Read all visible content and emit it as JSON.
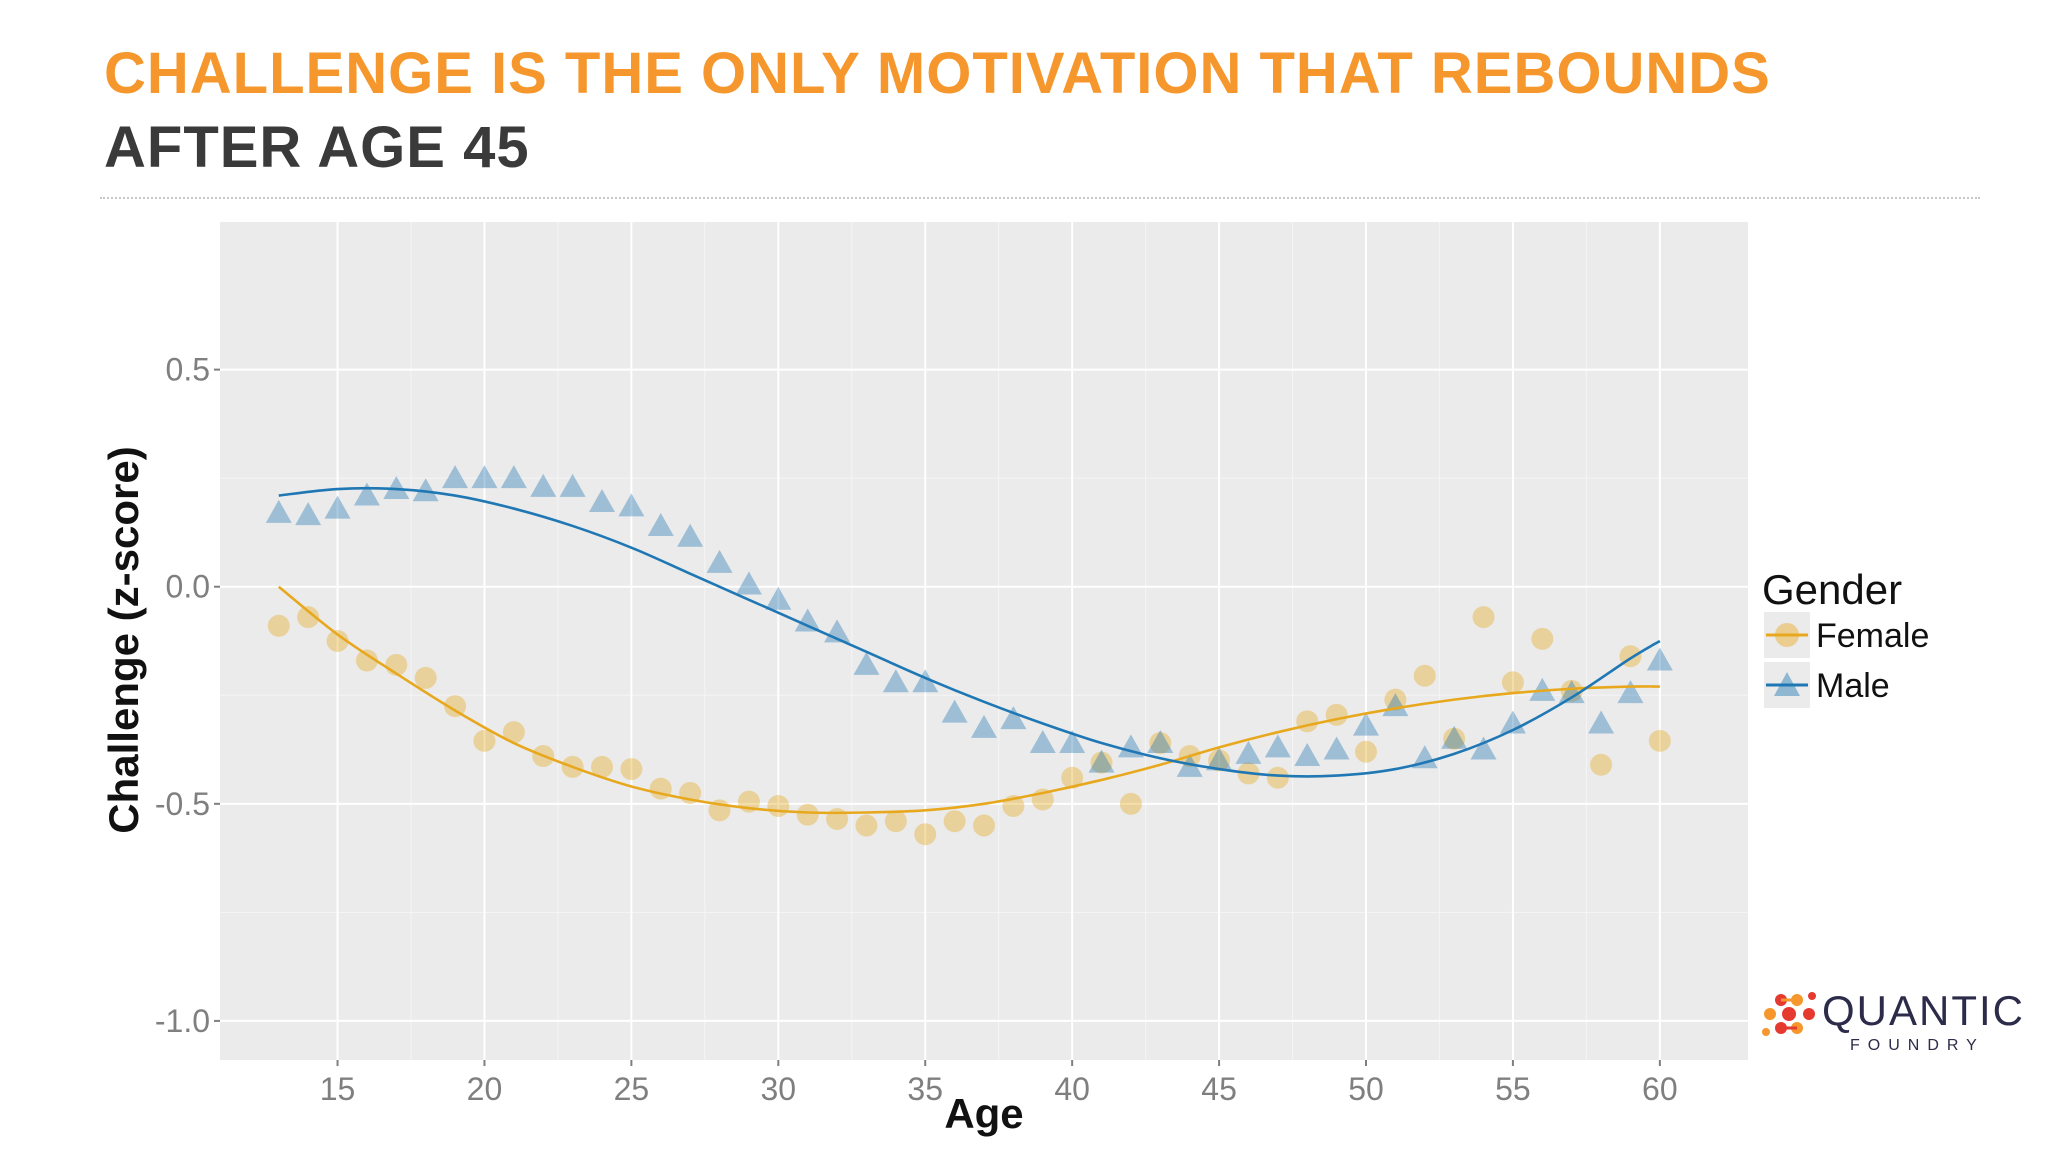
{
  "header": {
    "title": "CHALLENGE IS THE ONLY MOTIVATION THAT REBOUNDS",
    "subtitle": "AFTER AGE 45"
  },
  "logo": {
    "name": "QUANTIC",
    "sub": "FOUNDRY"
  },
  "chart_data": {
    "type": "scatter",
    "xlabel": "Age",
    "ylabel": "Challenge (z-score)",
    "xlim": [
      11,
      63
    ],
    "ylim": [
      -1.09,
      0.84
    ],
    "x_ticks": [
      15,
      20,
      25,
      30,
      35,
      40,
      45,
      50,
      55,
      60
    ],
    "y_ticks": [
      0.5,
      0.0,
      -0.5,
      -1.0
    ],
    "y_tick_labels": [
      "0.5",
      "0.0",
      "-0.5",
      "-1.0"
    ],
    "grid": true,
    "legend": {
      "title": "Gender",
      "placement": "right"
    },
    "series": [
      {
        "name": "Female",
        "marker": "circle",
        "color": "#e8a81e",
        "x": [
          13,
          14,
          15,
          16,
          17,
          18,
          19,
          20,
          21,
          22,
          23,
          24,
          25,
          26,
          27,
          28,
          29,
          30,
          31,
          32,
          33,
          34,
          35,
          36,
          37,
          38,
          39,
          40,
          41,
          42,
          43,
          44,
          45,
          46,
          47,
          48,
          49,
          50,
          51,
          52,
          53,
          54,
          55,
          56,
          57,
          58,
          59,
          60
        ],
        "y": [
          -0.09,
          -0.07,
          -0.125,
          -0.17,
          -0.18,
          -0.21,
          -0.275,
          -0.355,
          -0.335,
          -0.39,
          -0.415,
          -0.415,
          -0.42,
          -0.465,
          -0.475,
          -0.515,
          -0.495,
          -0.505,
          -0.525,
          -0.535,
          -0.55,
          -0.54,
          -0.57,
          -0.54,
          -0.55,
          -0.505,
          -0.49,
          -0.44,
          -0.405,
          -0.5,
          -0.36,
          -0.39,
          -0.4,
          -0.43,
          -0.44,
          -0.31,
          -0.295,
          -0.38,
          -0.26,
          -0.205,
          -0.35,
          -0.07,
          -0.22,
          -0.12,
          -0.24,
          -0.41,
          -0.16,
          -0.355
        ],
        "trend": {
          "x": [
            13,
            15,
            17,
            19,
            21,
            23,
            25,
            27,
            29,
            31,
            33,
            35,
            37,
            39,
            41,
            43,
            45,
            47,
            49,
            51,
            53,
            55,
            57,
            59,
            60
          ],
          "y": [
            0.0,
            -0.11,
            -0.2,
            -0.285,
            -0.36,
            -0.415,
            -0.46,
            -0.49,
            -0.51,
            -0.52,
            -0.52,
            -0.515,
            -0.5,
            -0.475,
            -0.445,
            -0.41,
            -0.37,
            -0.335,
            -0.305,
            -0.28,
            -0.26,
            -0.245,
            -0.235,
            -0.23,
            -0.23
          ]
        }
      },
      {
        "name": "Male",
        "marker": "triangle",
        "color": "#1f77b4",
        "x": [
          13,
          14,
          15,
          16,
          17,
          18,
          19,
          20,
          21,
          22,
          23,
          24,
          25,
          26,
          27,
          28,
          29,
          30,
          31,
          32,
          33,
          34,
          35,
          36,
          37,
          38,
          39,
          40,
          41,
          42,
          43,
          44,
          45,
          46,
          47,
          48,
          49,
          50,
          51,
          52,
          53,
          54,
          55,
          56,
          57,
          58,
          59,
          60
        ],
        "y": [
          0.17,
          0.165,
          0.18,
          0.21,
          0.225,
          0.22,
          0.25,
          0.25,
          0.25,
          0.23,
          0.23,
          0.195,
          0.185,
          0.14,
          0.115,
          0.055,
          0.005,
          -0.03,
          -0.08,
          -0.105,
          -0.18,
          -0.22,
          -0.22,
          -0.29,
          -0.325,
          -0.305,
          -0.36,
          -0.36,
          -0.405,
          -0.37,
          -0.36,
          -0.415,
          -0.4,
          -0.385,
          -0.37,
          -0.39,
          -0.375,
          -0.32,
          -0.275,
          -0.395,
          -0.35,
          -0.375,
          -0.315,
          -0.24,
          -0.245,
          -0.315,
          -0.245,
          -0.17
        ],
        "trend": {
          "x": [
            13,
            15,
            17,
            19,
            21,
            23,
            25,
            27,
            29,
            31,
            33,
            35,
            37,
            39,
            41,
            43,
            45,
            47,
            49,
            51,
            53,
            55,
            57,
            59,
            60
          ],
          "y": [
            0.21,
            0.225,
            0.225,
            0.21,
            0.18,
            0.14,
            0.09,
            0.03,
            -0.03,
            -0.09,
            -0.15,
            -0.21,
            -0.265,
            -0.315,
            -0.36,
            -0.395,
            -0.42,
            -0.435,
            -0.435,
            -0.42,
            -0.385,
            -0.33,
            -0.255,
            -0.165,
            -0.125
          ]
        }
      }
    ]
  }
}
